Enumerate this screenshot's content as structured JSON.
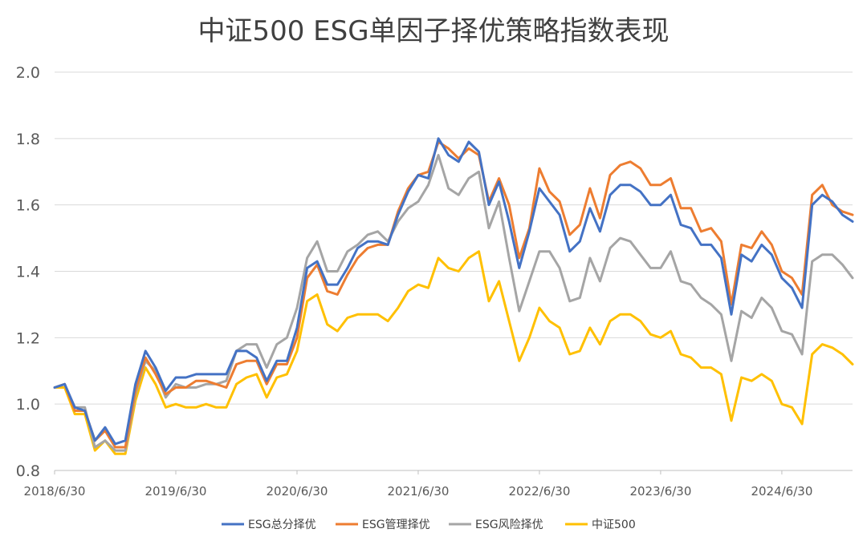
{
  "chart_data": {
    "type": "line",
    "title": "中证500 ESG单因子择优策略指数表现",
    "xlabel": "",
    "ylabel": "",
    "ylim": [
      0.8,
      2.0
    ],
    "y_ticks": [
      "2.0",
      "1.8",
      "1.6",
      "1.4",
      "1.2",
      "1.0",
      "0.8"
    ],
    "x_tick_labels": [
      "2018/6/30",
      "2019/6/30",
      "2020/6/30",
      "2021/6/30",
      "2022/6/30",
      "2023/6/30",
      "2024/6/30"
    ],
    "x_start": "2018/6/30",
    "x_end": "2025/3/31",
    "grid": true,
    "legend_position": "bottom",
    "series": [
      {
        "name": "ESG总分择优",
        "color": "#4472c4",
        "values": [
          1.05,
          1.06,
          0.99,
          0.98,
          0.89,
          0.93,
          0.88,
          0.89,
          1.06,
          1.16,
          1.11,
          1.04,
          1.08,
          1.08,
          1.09,
          1.09,
          1.09,
          1.09,
          1.16,
          1.16,
          1.14,
          1.07,
          1.13,
          1.13,
          1.23,
          1.41,
          1.43,
          1.36,
          1.36,
          1.41,
          1.47,
          1.49,
          1.49,
          1.48,
          1.57,
          1.64,
          1.69,
          1.68,
          1.8,
          1.75,
          1.73,
          1.79,
          1.76,
          1.6,
          1.67,
          1.55,
          1.41,
          1.52,
          1.65,
          1.61,
          1.57,
          1.46,
          1.49,
          1.59,
          1.52,
          1.63,
          1.66,
          1.66,
          1.64,
          1.6,
          1.6,
          1.63,
          1.54,
          1.53,
          1.48,
          1.48,
          1.44,
          1.27,
          1.45,
          1.43,
          1.48,
          1.45,
          1.38,
          1.35,
          1.29,
          1.6,
          1.63,
          1.61,
          1.57,
          1.55
        ]
      },
      {
        "name": "ESG管理择优",
        "color": "#ed7d31",
        "values": [
          1.05,
          1.06,
          0.98,
          0.98,
          0.89,
          0.92,
          0.87,
          0.87,
          1.04,
          1.14,
          1.09,
          1.03,
          1.05,
          1.05,
          1.07,
          1.07,
          1.06,
          1.05,
          1.12,
          1.13,
          1.13,
          1.06,
          1.12,
          1.12,
          1.2,
          1.38,
          1.42,
          1.34,
          1.33,
          1.39,
          1.44,
          1.47,
          1.48,
          1.48,
          1.58,
          1.65,
          1.69,
          1.7,
          1.79,
          1.77,
          1.74,
          1.77,
          1.75,
          1.61,
          1.68,
          1.6,
          1.44,
          1.53,
          1.71,
          1.64,
          1.61,
          1.51,
          1.54,
          1.65,
          1.56,
          1.69,
          1.72,
          1.73,
          1.71,
          1.66,
          1.66,
          1.68,
          1.59,
          1.59,
          1.52,
          1.53,
          1.49,
          1.3,
          1.48,
          1.47,
          1.52,
          1.48,
          1.4,
          1.38,
          1.33,
          1.63,
          1.66,
          1.6,
          1.58,
          1.57
        ]
      },
      {
        "name": "ESG风险择优",
        "color": "#a5a5a5",
        "values": [
          1.05,
          1.06,
          0.99,
          0.99,
          0.87,
          0.89,
          0.86,
          0.86,
          1.03,
          1.13,
          1.1,
          1.02,
          1.06,
          1.05,
          1.05,
          1.06,
          1.06,
          1.07,
          1.16,
          1.18,
          1.18,
          1.11,
          1.18,
          1.2,
          1.29,
          1.44,
          1.49,
          1.4,
          1.4,
          1.46,
          1.48,
          1.51,
          1.52,
          1.49,
          1.55,
          1.59,
          1.61,
          1.66,
          1.75,
          1.65,
          1.63,
          1.68,
          1.7,
          1.53,
          1.61,
          1.44,
          1.28,
          1.37,
          1.46,
          1.46,
          1.41,
          1.31,
          1.32,
          1.44,
          1.37,
          1.47,
          1.5,
          1.49,
          1.45,
          1.41,
          1.41,
          1.46,
          1.37,
          1.36,
          1.32,
          1.3,
          1.27,
          1.13,
          1.28,
          1.26,
          1.32,
          1.29,
          1.22,
          1.21,
          1.15,
          1.43,
          1.45,
          1.45,
          1.42,
          1.38
        ]
      },
      {
        "name": "中证500",
        "color": "#ffc000",
        "values": [
          1.05,
          1.05,
          0.97,
          0.97,
          0.86,
          0.89,
          0.85,
          0.85,
          1.01,
          1.11,
          1.06,
          0.99,
          1.0,
          0.99,
          0.99,
          1.0,
          0.99,
          0.99,
          1.06,
          1.08,
          1.09,
          1.02,
          1.08,
          1.09,
          1.16,
          1.31,
          1.33,
          1.24,
          1.22,
          1.26,
          1.27,
          1.27,
          1.27,
          1.25,
          1.29,
          1.34,
          1.36,
          1.35,
          1.44,
          1.41,
          1.4,
          1.44,
          1.46,
          1.31,
          1.37,
          1.25,
          1.13,
          1.2,
          1.29,
          1.25,
          1.23,
          1.15,
          1.16,
          1.23,
          1.18,
          1.25,
          1.27,
          1.27,
          1.25,
          1.21,
          1.2,
          1.22,
          1.15,
          1.14,
          1.11,
          1.11,
          1.09,
          0.95,
          1.08,
          1.07,
          1.09,
          1.07,
          1.0,
          0.99,
          0.94,
          1.15,
          1.18,
          1.17,
          1.15,
          1.12
        ]
      }
    ]
  }
}
